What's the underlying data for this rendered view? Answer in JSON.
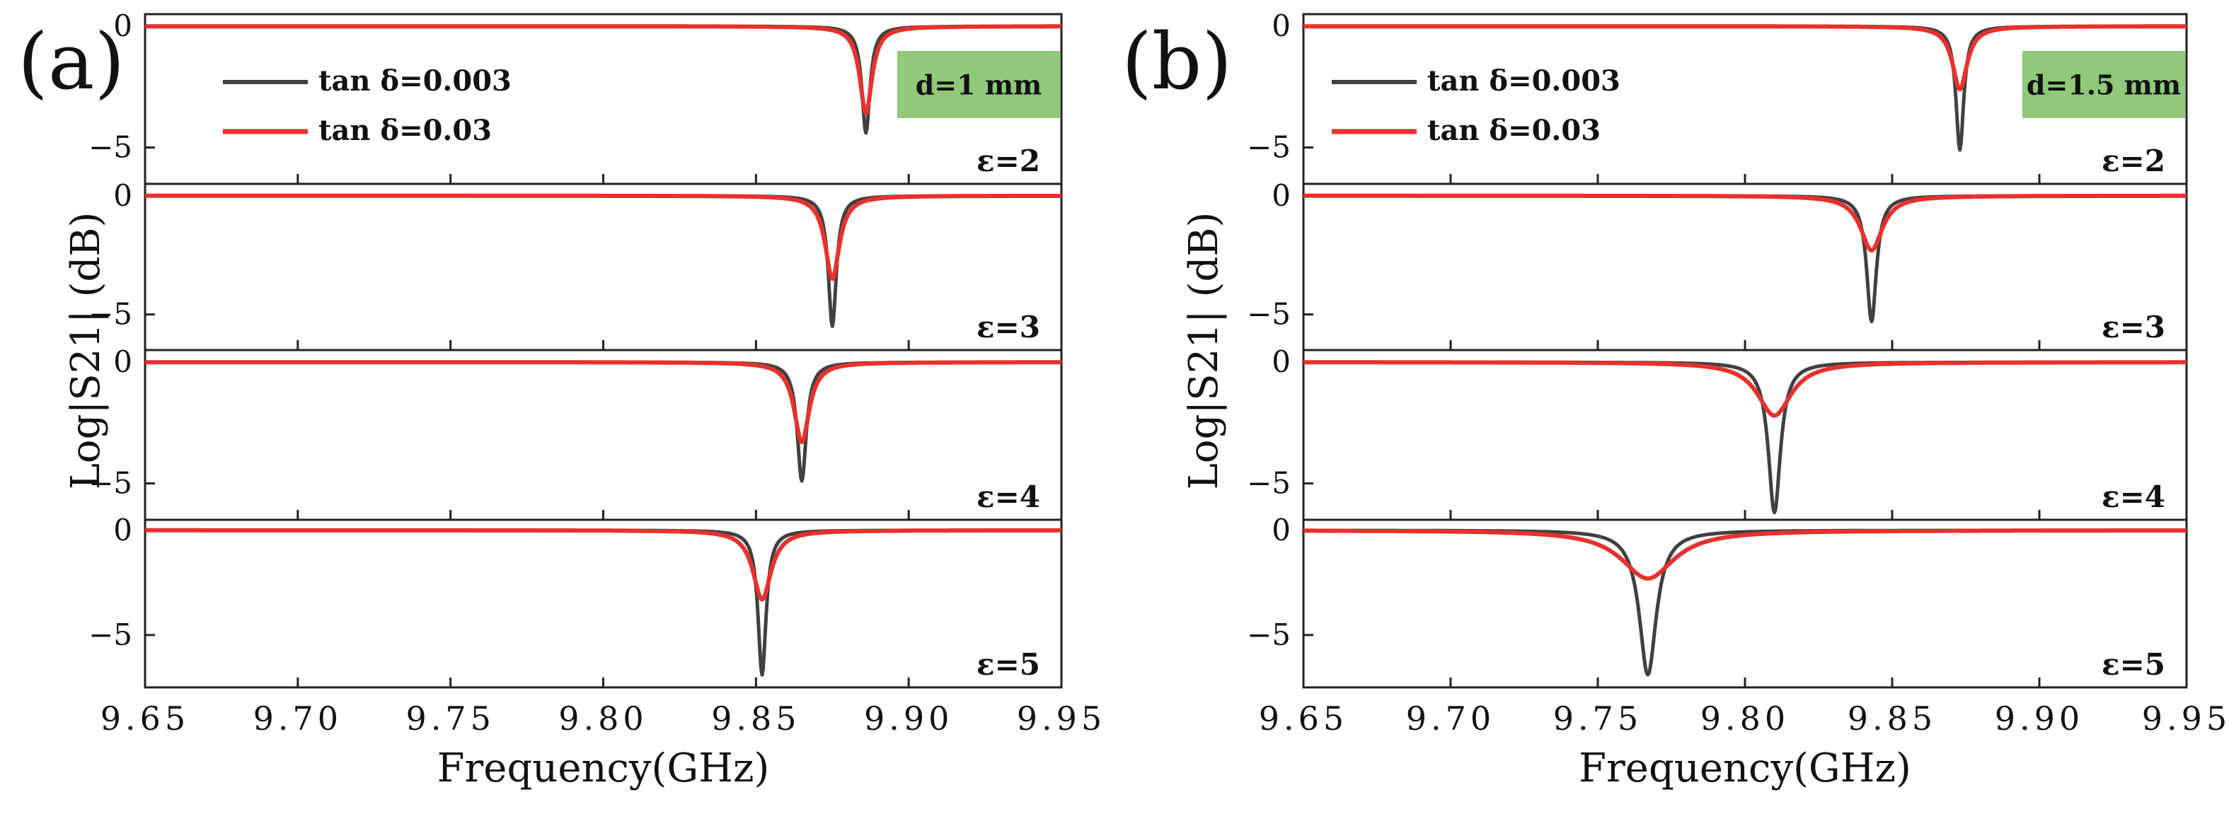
{
  "figure": {
    "panels": [
      {
        "letter": "(a)",
        "badge": "d=1 mm",
        "ylabel": "Log|S21| (dB)",
        "xlabel": "Frequency(GHz)",
        "legend": [
          "tan δ=0.003",
          "tan δ=0.03"
        ]
      },
      {
        "letter": "(b)",
        "badge": "d=1.5 mm",
        "ylabel": "Log|S21| (dB)",
        "xlabel": "Frequency(GHz)",
        "legend": [
          "tan δ=0.003",
          "tan δ=0.03"
        ]
      }
    ],
    "colors": {
      "low_loss": "#404040",
      "high_loss": "#e8312e",
      "badge": "#8fc979"
    }
  },
  "chart_data": [
    {
      "type": "line",
      "panel": "a",
      "title": "d=1 mm",
      "xlabel": "Frequency(GHz)",
      "ylabel": "Log|S21| (dB)",
      "xlim": [
        9.65,
        9.95
      ],
      "xticks": [
        "9.65",
        "9.70",
        "9.75",
        "9.80",
        "9.85",
        "9.90",
        "9.95"
      ],
      "subplots": [
        {
          "label": "ε=2",
          "ylim": [
            -6.5,
            0.5
          ],
          "yticks": [
            "0",
            "−5"
          ],
          "series": [
            {
              "name": "tanδ=0.003",
              "f0": 9.886,
              "depth": -4.4,
              "hw": 0.0016
            },
            {
              "name": "tanδ=0.03",
              "f0": 9.886,
              "depth": -3.6,
              "hw": 0.0024
            }
          ]
        },
        {
          "label": "ε=3",
          "ylim": [
            -6.5,
            0.5
          ],
          "yticks": [
            "0",
            "−5"
          ],
          "series": [
            {
              "name": "tanδ=0.003",
              "f0": 9.875,
              "depth": -5.5,
              "hw": 0.0016
            },
            {
              "name": "tanδ=0.03",
              "f0": 9.875,
              "depth": -3.5,
              "hw": 0.0028
            }
          ]
        },
        {
          "label": "ε=4",
          "ylim": [
            -6.5,
            0.5
          ],
          "yticks": [
            "0",
            "−5"
          ],
          "series": [
            {
              "name": "tanδ=0.003",
              "f0": 9.865,
              "depth": -4.9,
              "hw": 0.0018
            },
            {
              "name": "tanδ=0.03",
              "f0": 9.865,
              "depth": -3.3,
              "hw": 0.003
            }
          ]
        },
        {
          "label": "ε=5",
          "ylim": [
            -7.5,
            0.5
          ],
          "yticks": [
            "0",
            "−5"
          ],
          "series": [
            {
              "name": "tanδ=0.003",
              "f0": 9.852,
              "depth": -6.9,
              "hw": 0.0016
            },
            {
              "name": "tanδ=0.03",
              "f0": 9.852,
              "depth": -3.3,
              "hw": 0.0036
            }
          ]
        }
      ]
    },
    {
      "type": "line",
      "panel": "b",
      "title": "d=1.5 mm",
      "xlabel": "Frequency(GHz)",
      "ylabel": "Log|S21| (dB)",
      "xlim": [
        9.65,
        9.95
      ],
      "xticks": [
        "9.65",
        "9.70",
        "9.75",
        "9.80",
        "9.85",
        "9.90",
        "9.95"
      ],
      "subplots": [
        {
          "label": "ε=2",
          "ylim": [
            -6.5,
            0.5
          ],
          "yticks": [
            "0",
            "−5"
          ],
          "series": [
            {
              "name": "tanδ=0.003",
              "f0": 9.873,
              "depth": -5.1,
              "hw": 0.0016
            },
            {
              "name": "tanδ=0.03",
              "f0": 9.873,
              "depth": -2.6,
              "hw": 0.003
            }
          ]
        },
        {
          "label": "ε=3",
          "ylim": [
            -6.5,
            0.5
          ],
          "yticks": [
            "0",
            "−5"
          ],
          "series": [
            {
              "name": "tanδ=0.003",
              "f0": 9.843,
              "depth": -5.3,
              "hw": 0.002
            },
            {
              "name": "tanδ=0.03",
              "f0": 9.843,
              "depth": -2.3,
              "hw": 0.0045
            }
          ]
        },
        {
          "label": "ε=4",
          "ylim": [
            -6.5,
            0.5
          ],
          "yticks": [
            "0",
            "−5"
          ],
          "series": [
            {
              "name": "tanδ=0.003",
              "f0": 9.81,
              "depth": -6.2,
              "hw": 0.0025
            },
            {
              "name": "tanδ=0.03",
              "f0": 9.81,
              "depth": -2.2,
              "hw": 0.007
            }
          ]
        },
        {
          "label": "ε=5",
          "ylim": [
            -7.5,
            0.5
          ],
          "yticks": [
            "0",
            "−5"
          ],
          "series": [
            {
              "name": "tanδ=0.003",
              "f0": 9.767,
              "depth": -6.9,
              "hw": 0.0035
            },
            {
              "name": "tanδ=0.03",
              "f0": 9.767,
              "depth": -2.3,
              "hw": 0.011
            }
          ]
        }
      ]
    }
  ]
}
